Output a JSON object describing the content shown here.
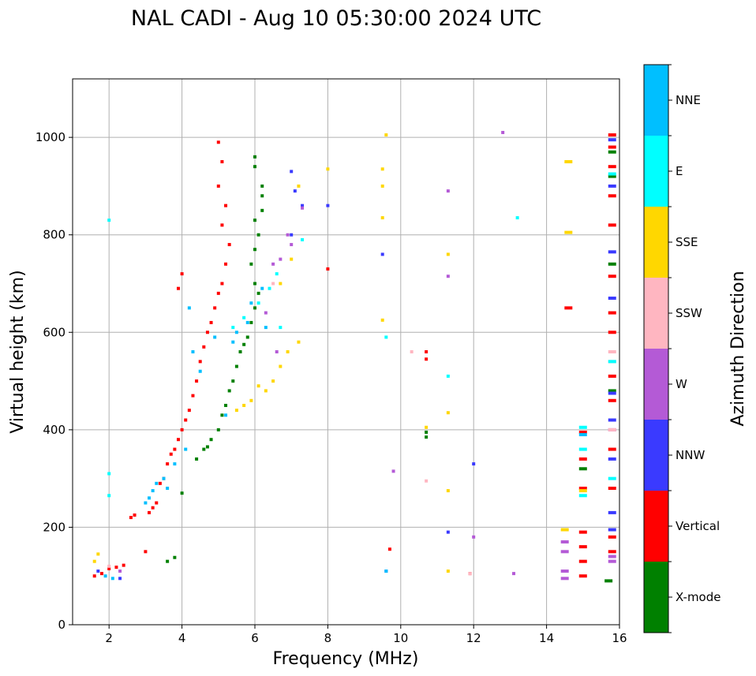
{
  "chart_data": {
    "type": "scatter",
    "title": "NAL CADI - Aug 10 05:30:00 2024 UTC",
    "xlabel": "Frequency (MHz)",
    "ylabel": "Virtual height (km)",
    "xlim": [
      1,
      16
    ],
    "ylim": [
      0,
      1120
    ],
    "x_ticks": [
      2,
      4,
      6,
      8,
      10,
      12,
      14,
      16
    ],
    "y_ticks": [
      0,
      200,
      400,
      600,
      800,
      1000
    ],
    "grid": true,
    "colorbar": {
      "label": "Azimuth Direction",
      "categories": [
        {
          "name": "X-mode",
          "color": "#008000"
        },
        {
          "name": "Vertical",
          "color": "#ff0000"
        },
        {
          "name": "NNW",
          "color": "#3a3aff"
        },
        {
          "name": "W",
          "color": "#b45ad6"
        },
        {
          "name": "SSW",
          "color": "#ffb6c1"
        },
        {
          "name": "SSE",
          "color": "#ffd700"
        },
        {
          "name": "E",
          "color": "#00ffff"
        },
        {
          "name": "NNE",
          "color": "#00bfff"
        }
      ]
    },
    "series": [
      {
        "name": "X-mode",
        "points": [
          [
            3.6,
            130
          ],
          [
            3.8,
            138
          ],
          [
            4.0,
            270
          ],
          [
            4.4,
            340
          ],
          [
            4.6,
            360
          ],
          [
            4.7,
            365
          ],
          [
            4.8,
            380
          ],
          [
            5.0,
            400
          ],
          [
            5.1,
            430
          ],
          [
            5.2,
            450
          ],
          [
            5.3,
            480
          ],
          [
            5.4,
            500
          ],
          [
            5.5,
            530
          ],
          [
            5.6,
            560
          ],
          [
            5.7,
            575
          ],
          [
            5.8,
            590
          ],
          [
            5.9,
            620
          ],
          [
            6.0,
            650
          ],
          [
            6.1,
            680
          ],
          [
            6.0,
            700
          ],
          [
            5.9,
            740
          ],
          [
            6.0,
            770
          ],
          [
            6.1,
            800
          ],
          [
            6.0,
            830
          ],
          [
            6.2,
            850
          ],
          [
            6.2,
            880
          ],
          [
            6.2,
            900
          ],
          [
            6.0,
            940
          ],
          [
            6.0,
            960
          ],
          [
            10.7,
            385
          ],
          [
            10.7,
            395
          ],
          [
            15.0,
            320
          ],
          [
            15.7,
            90
          ],
          [
            15.8,
            920
          ],
          [
            15.8,
            970
          ],
          [
            15.8,
            740
          ],
          [
            15.8,
            480
          ]
        ]
      },
      {
        "name": "Vertical",
        "points": [
          [
            1.6,
            100
          ],
          [
            1.8,
            105
          ],
          [
            2.0,
            115
          ],
          [
            2.2,
            118
          ],
          [
            2.4,
            122
          ],
          [
            2.6,
            220
          ],
          [
            2.7,
            225
          ],
          [
            3.0,
            150
          ],
          [
            3.1,
            230
          ],
          [
            3.2,
            240
          ],
          [
            3.3,
            250
          ],
          [
            3.4,
            290
          ],
          [
            3.5,
            300
          ],
          [
            3.6,
            330
          ],
          [
            3.7,
            350
          ],
          [
            3.8,
            360
          ],
          [
            3.9,
            380
          ],
          [
            4.0,
            400
          ],
          [
            4.1,
            420
          ],
          [
            4.2,
            440
          ],
          [
            4.3,
            470
          ],
          [
            4.4,
            500
          ],
          [
            4.5,
            540
          ],
          [
            4.6,
            570
          ],
          [
            4.7,
            600
          ],
          [
            4.8,
            620
          ],
          [
            4.9,
            650
          ],
          [
            5.0,
            680
          ],
          [
            5.1,
            700
          ],
          [
            5.2,
            740
          ],
          [
            5.3,
            780
          ],
          [
            5.1,
            820
          ],
          [
            5.2,
            860
          ],
          [
            5.0,
            900
          ],
          [
            5.1,
            950
          ],
          [
            5.0,
            990
          ],
          [
            3.9,
            690
          ],
          [
            4.0,
            720
          ],
          [
            8.0,
            730
          ],
          [
            9.7,
            155
          ],
          [
            10.7,
            560
          ],
          [
            10.7,
            545
          ],
          [
            11.9,
            105
          ],
          [
            14.6,
            650
          ],
          [
            15.0,
            100
          ],
          [
            15.0,
            130
          ],
          [
            15.0,
            160
          ],
          [
            15.0,
            190
          ],
          [
            15.0,
            340
          ],
          [
            15.0,
            395
          ],
          [
            15.0,
            280
          ],
          [
            15.8,
            1005
          ],
          [
            15.8,
            980
          ],
          [
            15.8,
            940
          ],
          [
            15.8,
            880
          ],
          [
            15.8,
            820
          ],
          [
            15.8,
            715
          ],
          [
            15.8,
            640
          ],
          [
            15.8,
            600
          ],
          [
            15.8,
            510
          ],
          [
            15.8,
            460
          ],
          [
            15.8,
            360
          ],
          [
            15.8,
            280
          ],
          [
            15.8,
            180
          ],
          [
            15.8,
            150
          ]
        ]
      },
      {
        "name": "NNW",
        "points": [
          [
            1.7,
            110
          ],
          [
            2.3,
            95
          ],
          [
            7.0,
            930
          ],
          [
            7.1,
            890
          ],
          [
            7.3,
            860
          ],
          [
            7.0,
            800
          ],
          [
            8.0,
            860
          ],
          [
            9.6,
            110
          ],
          [
            9.5,
            760
          ],
          [
            11.3,
            190
          ],
          [
            12.0,
            330
          ],
          [
            15.8,
            995
          ],
          [
            15.8,
            900
          ],
          [
            15.8,
            765
          ],
          [
            15.8,
            670
          ],
          [
            15.8,
            475
          ],
          [
            15.8,
            420
          ],
          [
            15.8,
            340
          ],
          [
            15.8,
            230
          ],
          [
            15.8,
            195
          ]
        ]
      },
      {
        "name": "W",
        "points": [
          [
            2.3,
            110
          ],
          [
            6.7,
            750
          ],
          [
            6.9,
            800
          ],
          [
            7.0,
            780
          ],
          [
            6.5,
            740
          ],
          [
            6.3,
            640
          ],
          [
            6.6,
            560
          ],
          [
            7.3,
            855
          ],
          [
            9.8,
            315
          ],
          [
            12.8,
            1010
          ],
          [
            11.3,
            890
          ],
          [
            11.3,
            715
          ],
          [
            12.0,
            180
          ],
          [
            13.1,
            105
          ],
          [
            14.5,
            170
          ],
          [
            14.5,
            150
          ],
          [
            14.5,
            110
          ],
          [
            14.5,
            95
          ],
          [
            15.8,
            400
          ],
          [
            15.8,
            140
          ],
          [
            15.8,
            130
          ]
        ]
      },
      {
        "name": "SSW",
        "points": [
          [
            2.0,
            120
          ],
          [
            6.5,
            700
          ],
          [
            10.3,
            560
          ],
          [
            10.7,
            295
          ],
          [
            11.9,
            105
          ],
          [
            15.8,
            560
          ],
          [
            15.8,
            540
          ],
          [
            15.8,
            400
          ]
        ]
      },
      {
        "name": "SSE",
        "points": [
          [
            1.6,
            130
          ],
          [
            1.7,
            145
          ],
          [
            5.5,
            440
          ],
          [
            5.7,
            450
          ],
          [
            5.9,
            460
          ],
          [
            6.1,
            490
          ],
          [
            6.3,
            480
          ],
          [
            6.5,
            500
          ],
          [
            6.7,
            530
          ],
          [
            6.9,
            560
          ],
          [
            7.2,
            580
          ],
          [
            6.7,
            700
          ],
          [
            7.0,
            750
          ],
          [
            7.2,
            900
          ],
          [
            8.0,
            935
          ],
          [
            9.5,
            935
          ],
          [
            9.5,
            900
          ],
          [
            9.6,
            1005
          ],
          [
            9.5,
            835
          ],
          [
            9.5,
            625
          ],
          [
            10.7,
            405
          ],
          [
            11.3,
            760
          ],
          [
            11.3,
            435
          ],
          [
            11.3,
            275
          ],
          [
            11.3,
            110
          ],
          [
            14.6,
            950
          ],
          [
            14.6,
            805
          ],
          [
            14.5,
            195
          ],
          [
            15.0,
            275
          ]
        ]
      },
      {
        "name": "E",
        "points": [
          [
            2.0,
            830
          ],
          [
            2.0,
            310
          ],
          [
            2.0,
            265
          ],
          [
            5.4,
            610
          ],
          [
            5.7,
            630
          ],
          [
            6.1,
            660
          ],
          [
            6.4,
            690
          ],
          [
            6.6,
            720
          ],
          [
            6.7,
            610
          ],
          [
            7.3,
            790
          ],
          [
            9.6,
            590
          ],
          [
            11.3,
            510
          ],
          [
            13.2,
            835
          ],
          [
            15.0,
            405
          ],
          [
            15.0,
            360
          ],
          [
            15.0,
            265
          ],
          [
            15.8,
            925
          ],
          [
            15.8,
            540
          ],
          [
            15.8,
            300
          ]
        ]
      },
      {
        "name": "NNE",
        "points": [
          [
            1.9,
            100
          ],
          [
            2.1,
            95
          ],
          [
            3.0,
            250
          ],
          [
            3.1,
            260
          ],
          [
            3.2,
            275
          ],
          [
            3.3,
            290
          ],
          [
            3.5,
            300
          ],
          [
            3.6,
            280
          ],
          [
            3.8,
            330
          ],
          [
            4.1,
            360
          ],
          [
            4.2,
            650
          ],
          [
            4.3,
            560
          ],
          [
            4.5,
            520
          ],
          [
            4.9,
            590
          ],
          [
            5.2,
            430
          ],
          [
            5.4,
            580
          ],
          [
            5.5,
            600
          ],
          [
            5.8,
            620
          ],
          [
            5.9,
            660
          ],
          [
            6.2,
            690
          ],
          [
            6.3,
            610
          ],
          [
            9.6,
            110
          ],
          [
            15.0,
            390
          ]
        ]
      }
    ]
  }
}
